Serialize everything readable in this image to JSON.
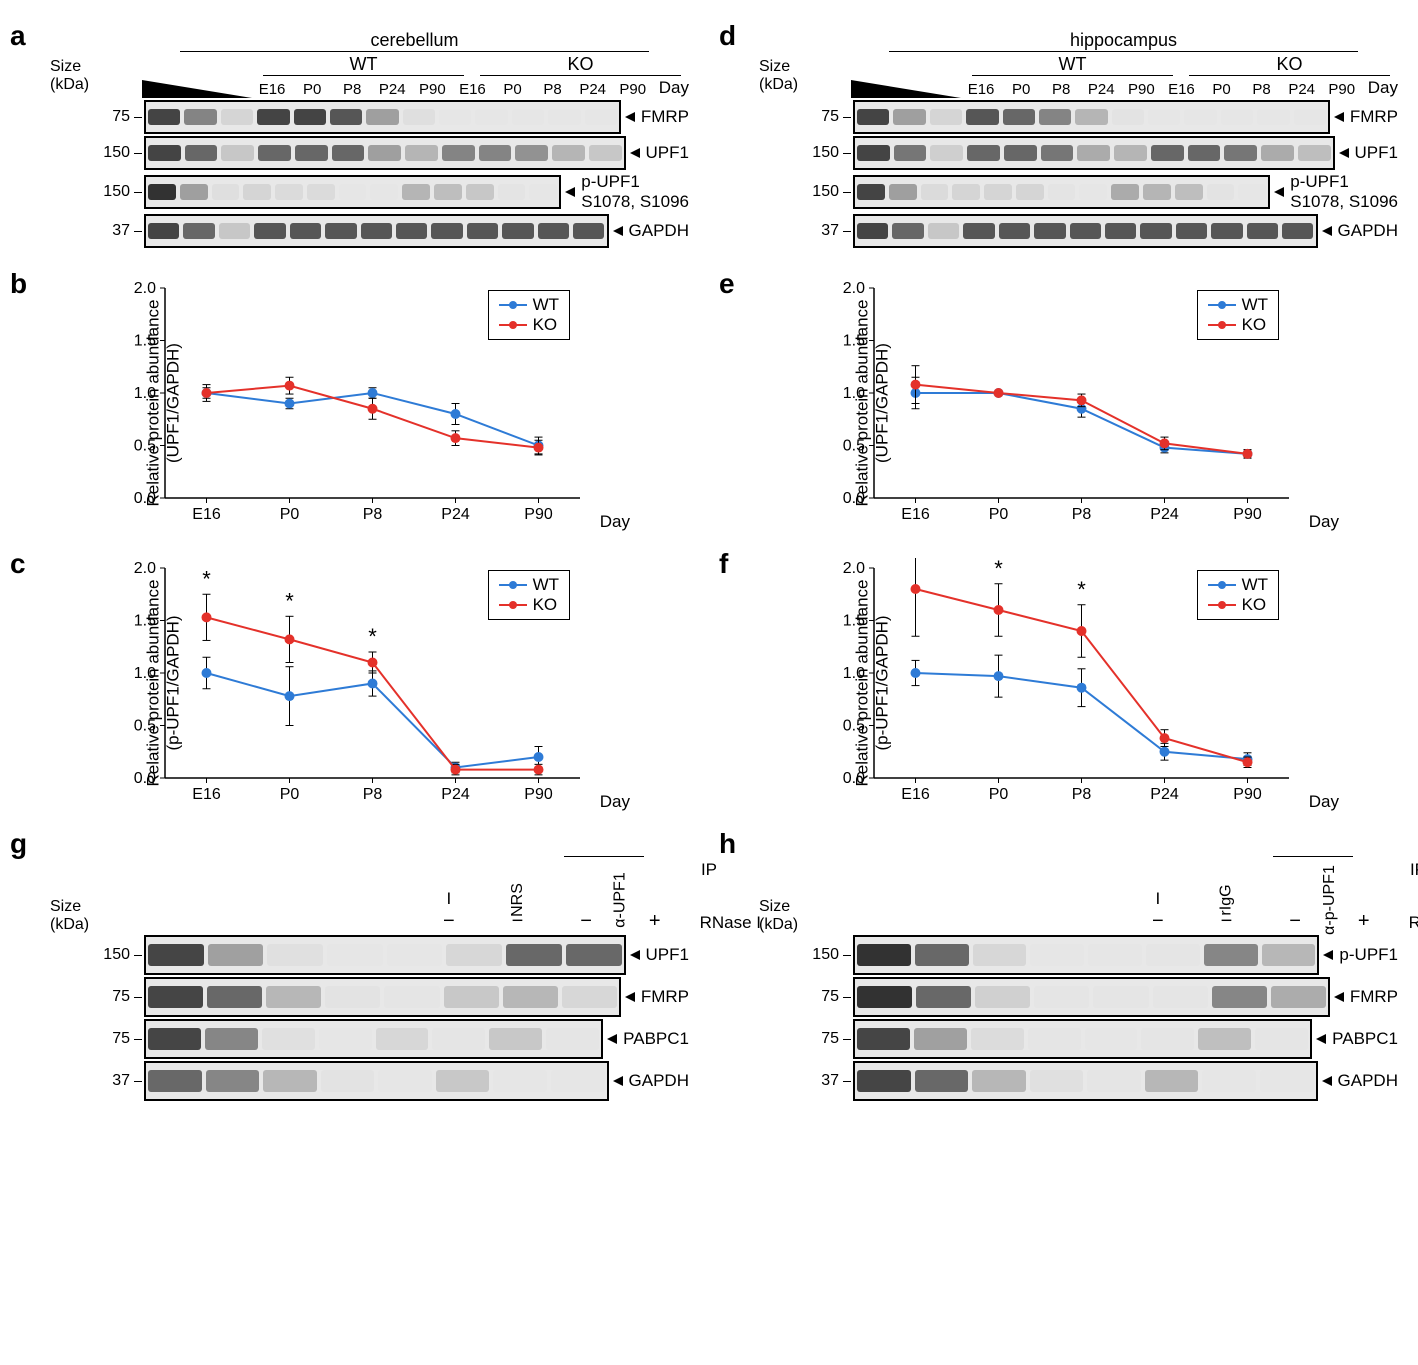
{
  "colors": {
    "wt": "#2e7bd6",
    "ko": "#e4312a",
    "axis": "#000000",
    "bg": "#ffffff"
  },
  "fonts": {
    "label_pt": 17,
    "panel_label_pt": 28,
    "axis_tick_pt": 16
  },
  "timepoints": [
    "E16",
    "P0",
    "P8",
    "P24",
    "P90"
  ],
  "blot": {
    "size_label": "Size\n(kDa)",
    "day_label": "Day",
    "wedge_lanes": 3,
    "genotypes": [
      "WT",
      "KO"
    ],
    "proteins": [
      {
        "mw": "75",
        "name": "FMRP"
      },
      {
        "mw": "150",
        "name": "UPF1"
      },
      {
        "mw": "150",
        "name": "p-UPF1\nS1078, S1096"
      },
      {
        "mw": "37",
        "name": "GAPDH"
      }
    ]
  },
  "panel_a": {
    "label": "a",
    "title": "cerebellum",
    "band_intensities": {
      "FMRP": [
        0.9,
        0.7,
        0.3,
        0.9,
        0.9,
        0.85,
        0.6,
        0.2,
        0.05,
        0.05,
        0.05,
        0.05,
        0.05
      ],
      "UPF1": [
        0.9,
        0.8,
        0.4,
        0.8,
        0.8,
        0.8,
        0.6,
        0.5,
        0.7,
        0.7,
        0.65,
        0.5,
        0.4
      ],
      "p-UPF1": [
        0.95,
        0.6,
        0.2,
        0.3,
        0.25,
        0.25,
        0.05,
        0.05,
        0.5,
        0.45,
        0.4,
        0.1,
        0.05
      ],
      "GAPDH": [
        0.9,
        0.8,
        0.4,
        0.85,
        0.85,
        0.85,
        0.85,
        0.85,
        0.85,
        0.85,
        0.85,
        0.85,
        0.85
      ]
    }
  },
  "panel_d": {
    "label": "d",
    "title": "hippocampus",
    "band_intensities": {
      "FMRP": [
        0.9,
        0.6,
        0.3,
        0.85,
        0.8,
        0.7,
        0.5,
        0.15,
        0.05,
        0.05,
        0.05,
        0.05,
        0.05
      ],
      "UPF1": [
        0.9,
        0.75,
        0.35,
        0.8,
        0.8,
        0.75,
        0.55,
        0.5,
        0.8,
        0.8,
        0.75,
        0.55,
        0.45
      ],
      "p-UPF1": [
        0.9,
        0.6,
        0.25,
        0.3,
        0.3,
        0.3,
        0.1,
        0.05,
        0.55,
        0.5,
        0.45,
        0.15,
        0.05
      ],
      "GAPDH": [
        0.9,
        0.8,
        0.4,
        0.85,
        0.85,
        0.85,
        0.85,
        0.85,
        0.85,
        0.85,
        0.85,
        0.85,
        0.85
      ]
    }
  },
  "chart_common": {
    "ylim": [
      0,
      2.0
    ],
    "yticks": [
      0,
      0.5,
      1.0,
      1.5,
      2.0
    ],
    "xticks": [
      "E16",
      "P0",
      "P8",
      "P24",
      "P90"
    ],
    "xlabel": "Day",
    "legend": [
      "WT",
      "KO"
    ],
    "marker_size": 5,
    "line_width": 2,
    "error_cap_width": 6
  },
  "panel_b": {
    "label": "b",
    "ylabel": "Relative protein abundance\n(UPF1/GAPDH)",
    "legend_pos": "right-top",
    "wt": {
      "y": [
        1.0,
        0.9,
        1.0,
        0.8,
        0.5
      ],
      "err": [
        0.05,
        0.05,
        0.05,
        0.1,
        0.08
      ]
    },
    "ko": {
      "y": [
        1.0,
        1.07,
        0.85,
        0.57,
        0.48
      ],
      "err": [
        0.08,
        0.08,
        0.1,
        0.07,
        0.07
      ]
    },
    "sig": []
  },
  "panel_e": {
    "label": "e",
    "ylabel": "Relative protein abundance\n(UPF1/GAPDH)",
    "legend_pos": "right-top",
    "wt": {
      "y": [
        1.0,
        1.0,
        0.85,
        0.48,
        0.42
      ],
      "err": [
        0.15,
        0.02,
        0.08,
        0.05,
        0.04
      ]
    },
    "ko": {
      "y": [
        1.08,
        1.0,
        0.93,
        0.52,
        0.42
      ],
      "err": [
        0.18,
        0.02,
        0.06,
        0.06,
        0.04
      ]
    },
    "sig": []
  },
  "panel_c": {
    "label": "c",
    "ylabel": "Relative protein abundance\n(p-UPF1/GAPDH)",
    "legend_pos": "right-top",
    "wt": {
      "y": [
        1.0,
        0.78,
        0.9,
        0.1,
        0.2
      ],
      "err": [
        0.15,
        0.28,
        0.12,
        0.05,
        0.1
      ]
    },
    "ko": {
      "y": [
        1.53,
        1.32,
        1.1,
        0.08,
        0.08
      ],
      "err": [
        0.22,
        0.22,
        0.1,
        0.05,
        0.05
      ]
    },
    "sig": [
      0,
      1,
      2
    ]
  },
  "panel_f": {
    "label": "f",
    "ylabel": "Relative protein abundance\n(p-UPF1/GAPDH)",
    "legend_pos": "right-top",
    "wt": {
      "y": [
        1.0,
        0.97,
        0.86,
        0.25,
        0.18
      ],
      "err": [
        0.12,
        0.2,
        0.18,
        0.08,
        0.06
      ]
    },
    "ko": {
      "y": [
        1.8,
        1.6,
        1.4,
        0.38,
        0.15
      ],
      "err": [
        0.45,
        0.25,
        0.25,
        0.08,
        0.05
      ]
    },
    "sig": [
      0,
      1,
      2
    ]
  },
  "ip_common": {
    "size_label": "Size\n(kDa)",
    "ip_label": "IP",
    "rnase_label": "RNase I",
    "rnase_row": [
      "−",
      "−",
      "−",
      "+"
    ],
    "proteins_g": [
      {
        "mw": "150",
        "name": "UPF1"
      },
      {
        "mw": "75",
        "name": "FMRP"
      },
      {
        "mw": "75",
        "name": "PABPC1"
      },
      {
        "mw": "37",
        "name": "GAPDH"
      }
    ],
    "proteins_h": [
      {
        "mw": "150",
        "name": "p-UPF1"
      },
      {
        "mw": "75",
        "name": "FMRP"
      },
      {
        "mw": "75",
        "name": "PABPC1"
      },
      {
        "mw": "37",
        "name": "GAPDH"
      }
    ]
  },
  "panel_g": {
    "label": "g",
    "columns": [
      "I",
      "NRS",
      "α-UPF1"
    ],
    "wedge_lanes": 4,
    "band_intensities": {
      "UPF1": [
        0.9,
        0.6,
        0.2,
        0.05,
        0.05,
        0.3,
        0.8,
        0.8
      ],
      "FMRP": [
        0.9,
        0.8,
        0.5,
        0.15,
        0.1,
        0.4,
        0.5,
        0.3
      ],
      "PABPC1": [
        0.9,
        0.7,
        0.2,
        0.05,
        0.3,
        0.1,
        0.4,
        0.1
      ],
      "GAPDH": [
        0.8,
        0.7,
        0.5,
        0.15,
        0.05,
        0.4,
        0.05,
        0.05
      ]
    }
  },
  "panel_h": {
    "label": "h",
    "columns": [
      "I",
      "rIgG",
      "α-p-UPF1"
    ],
    "wedge_lanes": 4,
    "band_intensities": {
      "p-UPF1": [
        0.95,
        0.8,
        0.3,
        0.05,
        0.05,
        0.1,
        0.7,
        0.5
      ],
      "FMRP": [
        0.95,
        0.8,
        0.35,
        0.1,
        0.1,
        0.1,
        0.7,
        0.55
      ],
      "PABPC1": [
        0.9,
        0.6,
        0.25,
        0.1,
        0.05,
        0.1,
        0.45,
        0.1
      ],
      "GAPDH": [
        0.9,
        0.8,
        0.5,
        0.2,
        0.1,
        0.5,
        0.05,
        0.05
      ]
    }
  }
}
